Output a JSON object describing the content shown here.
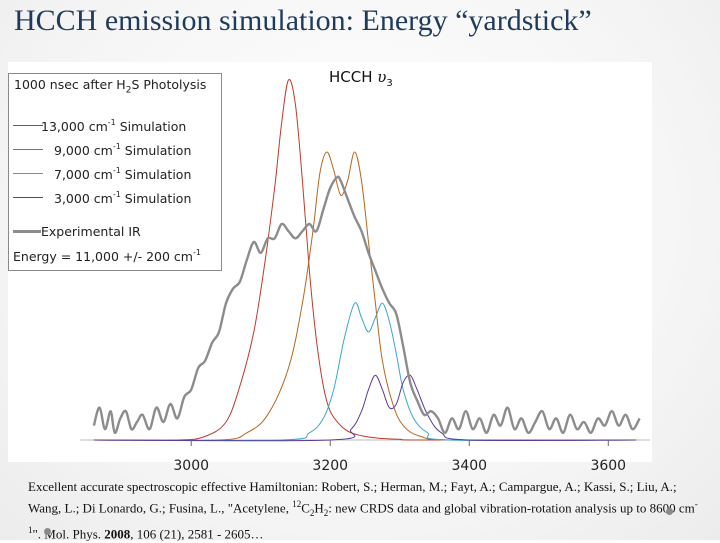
{
  "slide": {
    "title": "HCCH emission simulation: Energy “yardstick”",
    "citation": {
      "part1": "Excellent accurate spectroscopic effective Hamiltonian: Robert, S.; Herman, M.; Fayt, A.; Campargue, A.; Kassi, S.; Liu, A.; Wang, L.; Di Lonardo, G.; Fusina, L., \"Acetylene, ",
      "isotope_sup": "12",
      "formula_c": "C",
      "sub_c": "2",
      "formula_h": "H",
      "sub_h": "2",
      "part2": ": new CRDS data and global vibration-rotation analysis up to 8600 cm",
      "unit_sup": "-1",
      "part3": "\". Mol. Phys. ",
      "year": "2008",
      "part4": ", 106 (21), 2581 - 2605…"
    }
  },
  "chart_data": {
    "type": "line",
    "xlabel": "",
    "ylabel": "",
    "xlim": [
      2840,
      3660
    ],
    "ylim": [
      0,
      1.0
    ],
    "xticks": [
      3000,
      3200,
      3400,
      3600
    ],
    "xtick_labels": [
      "3000",
      "3200",
      "3400",
      "3600"
    ],
    "band_label": {
      "text": "HCCH",
      "mode": "υ",
      "mode_sub": "3"
    },
    "legend": {
      "heading_text": "1000 nsec after H",
      "heading_sub": "2",
      "heading_rest": "S Photolysis",
      "entries": [
        {
          "energy": "13,000 cm",
          "sup": "-1",
          "label": "Simulation",
          "color": "#c0392b"
        },
        {
          "energy": "9,000 cm",
          "sup": "-1",
          "label": "Simulation",
          "color": "#b8651b"
        },
        {
          "energy": "7,000 cm",
          "sup": "-1",
          "label": "Simulation",
          "color": "#3aa6d0"
        },
        {
          "energy": "3,000 cm",
          "sup": "-1",
          "label": "Simulation",
          "color": "#5b3a9a"
        },
        {
          "energy": "",
          "sup": "",
          "label": "Experimental IR",
          "color": "#8c8c8c"
        }
      ],
      "result_text": "Energy = 11,000 +/- 200 cm",
      "result_sup": "-1"
    },
    "series": [
      {
        "name": "13,000 cm-1 Simulation",
        "color": "#c0392b",
        "width": 1,
        "x": [
          2860,
          2980,
          3020,
          3050,
          3070,
          3090,
          3105,
          3120,
          3130,
          3140,
          3150,
          3160,
          3170,
          3180,
          3190,
          3200,
          3215,
          3230,
          3250,
          3270,
          3300,
          3340,
          3640
        ],
        "y": [
          0.0,
          0.0,
          0.01,
          0.05,
          0.15,
          0.3,
          0.48,
          0.7,
          0.88,
          1.0,
          0.93,
          0.72,
          0.47,
          0.28,
          0.15,
          0.08,
          0.04,
          0.02,
          0.01,
          0.005,
          0.002,
          0.0,
          0.0
        ]
      },
      {
        "name": "9,000 cm-1 Simulation",
        "color": "#b8651b",
        "width": 1,
        "x": [
          2860,
          3040,
          3080,
          3110,
          3140,
          3160,
          3175,
          3185,
          3195,
          3205,
          3215,
          3225,
          3235,
          3245,
          3255,
          3265,
          3275,
          3290,
          3305,
          3330,
          3380,
          3640
        ],
        "y": [
          0.0,
          0.0,
          0.02,
          0.07,
          0.2,
          0.38,
          0.58,
          0.74,
          0.8,
          0.75,
          0.68,
          0.72,
          0.8,
          0.72,
          0.55,
          0.38,
          0.22,
          0.1,
          0.04,
          0.01,
          0.0,
          0.0
        ]
      },
      {
        "name": "7,000 cm-1 Simulation",
        "color": "#3aa6d0",
        "width": 1,
        "x": [
          2860,
          3130,
          3170,
          3190,
          3205,
          3220,
          3235,
          3245,
          3255,
          3265,
          3275,
          3285,
          3295,
          3305,
          3320,
          3340,
          3370,
          3640
        ],
        "y": [
          0.0,
          0.0,
          0.02,
          0.06,
          0.14,
          0.28,
          0.38,
          0.34,
          0.3,
          0.34,
          0.38,
          0.33,
          0.24,
          0.14,
          0.06,
          0.02,
          0.0,
          0.0
        ]
      },
      {
        "name": "3,000 cm-1 Simulation",
        "color": "#5b3a9a",
        "width": 1,
        "x": [
          2860,
          3200,
          3230,
          3245,
          3255,
          3265,
          3275,
          3285,
          3295,
          3305,
          3315,
          3325,
          3340,
          3360,
          3400,
          3640
        ],
        "y": [
          0.0,
          0.0,
          0.03,
          0.08,
          0.14,
          0.18,
          0.14,
          0.09,
          0.1,
          0.16,
          0.18,
          0.14,
          0.07,
          0.02,
          0.0,
          0.0
        ]
      },
      {
        "name": "Experimental IR",
        "color": "#8c8c8c",
        "width": 2.4,
        "x": [
          2860,
          2868,
          2876,
          2884,
          2890,
          2898,
          2906,
          2914,
          2922,
          2930,
          2940,
          2950,
          2960,
          2970,
          2980,
          2990,
          3000,
          3010,
          3020,
          3030,
          3040,
          3050,
          3060,
          3070,
          3080,
          3090,
          3100,
          3110,
          3120,
          3130,
          3140,
          3150,
          3160,
          3170,
          3180,
          3190,
          3200,
          3210,
          3215,
          3225,
          3235,
          3245,
          3255,
          3265,
          3275,
          3285,
          3295,
          3305,
          3315,
          3325,
          3335,
          3345,
          3355,
          3365,
          3375,
          3385,
          3395,
          3405,
          3415,
          3425,
          3435,
          3445,
          3455,
          3465,
          3475,
          3485,
          3495,
          3505,
          3515,
          3525,
          3535,
          3545,
          3555,
          3565,
          3575,
          3585,
          3595,
          3605,
          3615,
          3625,
          3635,
          3645
        ],
        "y": [
          0.04,
          0.09,
          0.03,
          0.08,
          0.02,
          0.06,
          0.08,
          0.03,
          0.05,
          0.07,
          0.03,
          0.09,
          0.05,
          0.1,
          0.06,
          0.12,
          0.14,
          0.2,
          0.22,
          0.27,
          0.3,
          0.38,
          0.42,
          0.44,
          0.5,
          0.55,
          0.52,
          0.56,
          0.56,
          0.6,
          0.58,
          0.56,
          0.58,
          0.6,
          0.58,
          0.64,
          0.7,
          0.73,
          0.72,
          0.67,
          0.62,
          0.58,
          0.52,
          0.47,
          0.42,
          0.38,
          0.35,
          0.26,
          0.16,
          0.11,
          0.07,
          0.08,
          0.06,
          0.02,
          0.06,
          0.03,
          0.08,
          0.03,
          0.06,
          0.02,
          0.07,
          0.04,
          0.09,
          0.03,
          0.06,
          0.02,
          0.05,
          0.08,
          0.03,
          0.06,
          0.02,
          0.07,
          0.03,
          0.05,
          0.02,
          0.06,
          0.04,
          0.08,
          0.04,
          0.07,
          0.03,
          0.06
        ]
      }
    ]
  }
}
